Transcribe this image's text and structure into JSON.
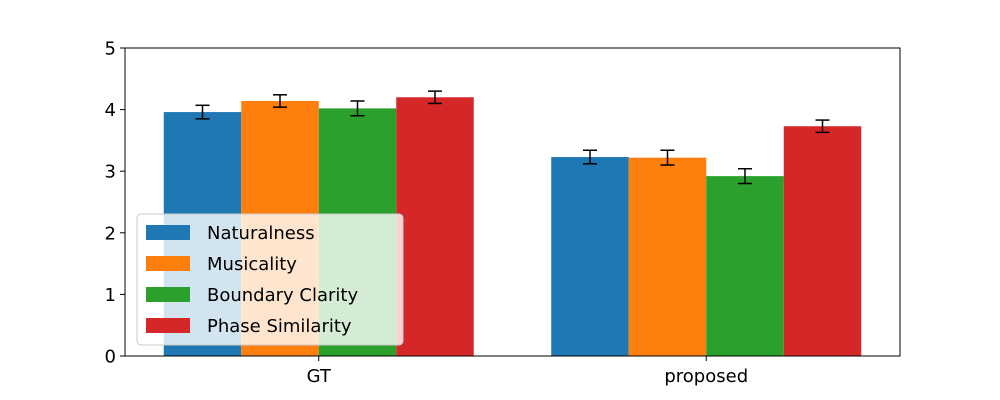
{
  "chart_data": {
    "type": "bar",
    "title": "",
    "xlabel": "",
    "ylabel": "",
    "categories": [
      "GT",
      "proposed"
    ],
    "ylim": [
      0,
      5
    ],
    "yticks": [
      0,
      1,
      2,
      3,
      4,
      5
    ],
    "grid": false,
    "legend_position": "lower-left",
    "series": [
      {
        "name": "Naturalness",
        "color": "#1f77b4",
        "values": [
          3.96,
          3.23
        ],
        "errors": [
          0.11,
          0.11
        ]
      },
      {
        "name": "Musicality",
        "color": "#ff7f0e",
        "values": [
          4.14,
          3.22
        ],
        "errors": [
          0.1,
          0.12
        ]
      },
      {
        "name": "Boundary Clarity",
        "color": "#2ca02c",
        "values": [
          4.02,
          2.92
        ],
        "errors": [
          0.12,
          0.12
        ]
      },
      {
        "name": "Phase Similarity",
        "color": "#d62728",
        "values": [
          4.2,
          3.73
        ],
        "errors": [
          0.1,
          0.1
        ]
      }
    ]
  }
}
